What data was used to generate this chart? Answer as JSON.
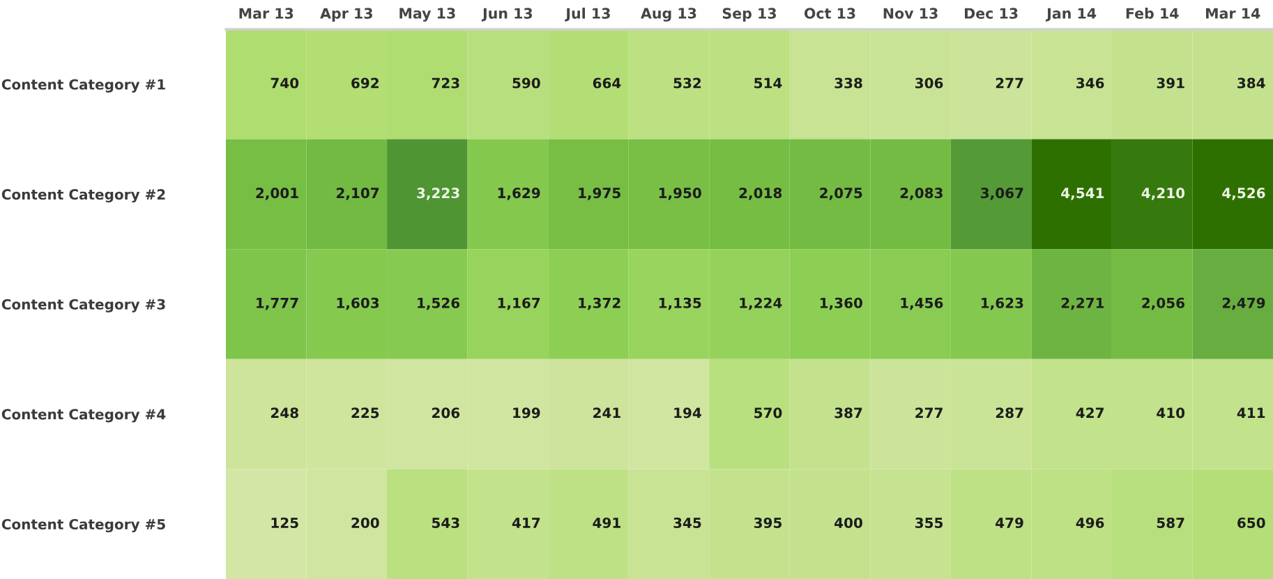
{
  "chart_data": {
    "type": "heatmap",
    "categories": [
      "Mar 13",
      "Apr 13",
      "May 13",
      "Jun 13",
      "Jul 13",
      "Aug 13",
      "Sep 13",
      "Oct 13",
      "Nov 13",
      "Dec 13",
      "Jan 14",
      "Feb 14",
      "Mar 14"
    ],
    "y_categories": [
      "Content Category #1",
      "Content Category #2",
      "Content Category #3",
      "Content Category #4",
      "Content Category #5"
    ],
    "cells": [
      [
        740,
        692,
        723,
        590,
        664,
        532,
        514,
        338,
        306,
        277,
        346,
        391,
        384
      ],
      [
        2001,
        2107,
        3223,
        1629,
        1975,
        1950,
        2018,
        2075,
        2083,
        3067,
        4541,
        4210,
        4526
      ],
      [
        1777,
        1603,
        1526,
        1167,
        1372,
        1135,
        1224,
        1360,
        1456,
        1623,
        2271,
        2056,
        2479
      ],
      [
        248,
        225,
        206,
        199,
        241,
        194,
        570,
        387,
        277,
        287,
        427,
        410,
        411
      ],
      [
        125,
        200,
        543,
        417,
        491,
        345,
        395,
        400,
        355,
        479,
        496,
        587,
        650
      ]
    ],
    "cell_labels": [
      [
        "740",
        "692",
        "723",
        "590",
        "664",
        "532",
        "514",
        "338",
        "306",
        "277",
        "346",
        "391",
        "384"
      ],
      [
        "2,001",
        "2,107",
        "3,223",
        "1,629",
        "1,975",
        "1,950",
        "2,018",
        "2,075",
        "2,083",
        "3,067",
        "4,541",
        "4,210",
        "4,526"
      ],
      [
        "1,777",
        "1,603",
        "1,526",
        "1,167",
        "1,372",
        "1,135",
        "1,224",
        "1,360",
        "1,456",
        "1,623",
        "2,271",
        "2,056",
        "2,479"
      ],
      [
        "248",
        "225",
        "206",
        "199",
        "241",
        "194",
        "570",
        "387",
        "277",
        "287",
        "427",
        "410",
        "411"
      ],
      [
        "125",
        "200",
        "543",
        "417",
        "491",
        "345",
        "395",
        "400",
        "355",
        "479",
        "496",
        "587",
        "650"
      ]
    ]
  }
}
